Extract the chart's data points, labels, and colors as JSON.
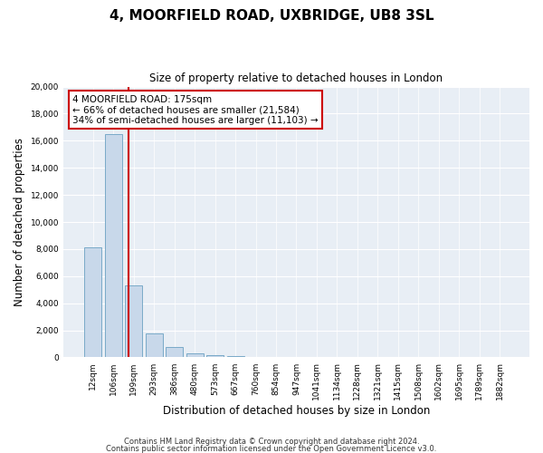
{
  "title": "4, MOORFIELD ROAD, UXBRIDGE, UB8 3SL",
  "subtitle": "Size of property relative to detached houses in London",
  "xlabel": "Distribution of detached houses by size in London",
  "ylabel": "Number of detached properties",
  "bar_color": "#c8d8ea",
  "bar_edge_color": "#7aaac8",
  "categories": [
    "12sqm",
    "106sqm",
    "199sqm",
    "293sqm",
    "386sqm",
    "480sqm",
    "573sqm",
    "667sqm",
    "760sqm",
    "854sqm",
    "947sqm",
    "1041sqm",
    "1134sqm",
    "1228sqm",
    "1321sqm",
    "1415sqm",
    "1508sqm",
    "1602sqm",
    "1695sqm",
    "1789sqm",
    "1882sqm"
  ],
  "values": [
    8100,
    16500,
    5300,
    1750,
    750,
    300,
    175,
    100,
    60,
    50,
    0,
    0,
    0,
    0,
    0,
    0,
    0,
    0,
    0,
    0,
    0
  ],
  "ylim": [
    0,
    20000
  ],
  "yticks": [
    0,
    2000,
    4000,
    6000,
    8000,
    10000,
    12000,
    14000,
    16000,
    18000,
    20000
  ],
  "vline_x": 1.73,
  "vline_color": "#cc0000",
  "annotation_box_text": "4 MOORFIELD ROAD: 175sqm\n← 66% of detached houses are smaller (21,584)\n34% of semi-detached houses are larger (11,103) →",
  "annotation_box_color": "#cc0000",
  "annotation_box_bg": "#ffffff",
  "footer_line1": "Contains HM Land Registry data © Crown copyright and database right 2024.",
  "footer_line2": "Contains public sector information licensed under the Open Government Licence v3.0.",
  "bg_color": "#ffffff",
  "plot_bg_color": "#e8eef5"
}
